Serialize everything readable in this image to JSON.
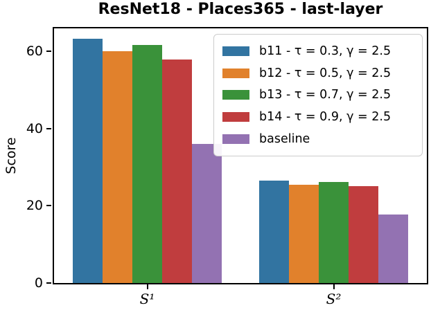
{
  "chart_data": {
    "type": "bar",
    "title": "ResNet18 - Places365 - last-layer",
    "xlabel": "",
    "ylabel": "Score",
    "categories": [
      "S¹",
      "S²"
    ],
    "series": [
      {
        "name": "b11 - τ = 0.3, γ = 2.5",
        "color": "#3274a1",
        "values": [
          63.4,
          26.5
        ]
      },
      {
        "name": "b12 - τ = 0.5, γ = 2.5",
        "color": "#e1812c",
        "values": [
          60.0,
          25.4
        ]
      },
      {
        "name": "b13 - τ = 0.7, γ = 2.5",
        "color": "#3a923a",
        "values": [
          61.7,
          26.2
        ]
      },
      {
        "name": "b14 - τ = 0.9, γ = 2.5",
        "color": "#c03d3e",
        "values": [
          58.0,
          25.2
        ]
      },
      {
        "name": "baseline",
        "color": "#9372b2",
        "values": [
          36.0,
          17.8
        ]
      }
    ],
    "ylim": [
      0,
      66
    ],
    "yticks": [
      0,
      20,
      40,
      60
    ],
    "grid": false,
    "legend_position": "upper right",
    "bar_group_width_fraction": 0.8
  }
}
